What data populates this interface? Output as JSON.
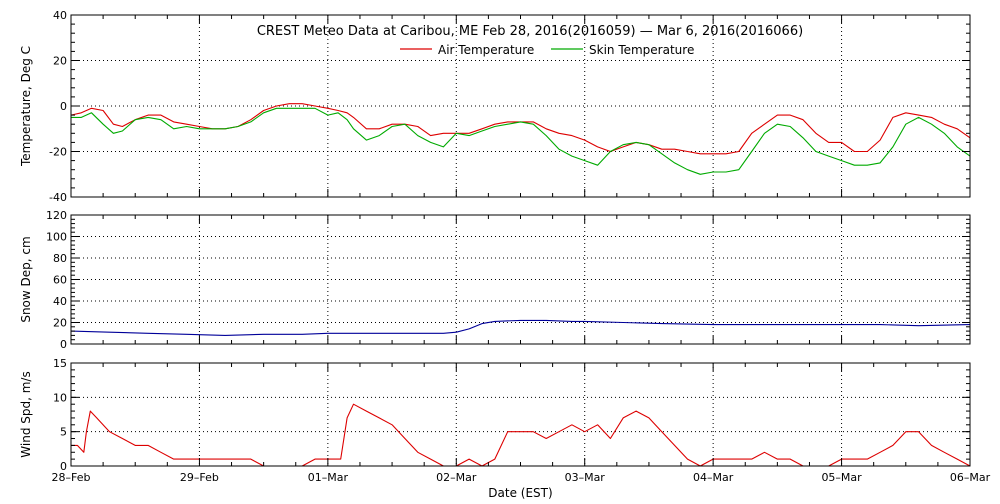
{
  "title": "CREST Meteo Data at Caribou, ME   Feb 28, 2016(2016059) — Mar  6, 2016(2016066)",
  "xlabel": "Date (EST)",
  "x_tick_labels": [
    "28–Feb",
    "29–Feb",
    "01–Mar",
    "02–Mar",
    "03–Mar",
    "04–Mar",
    "05–Mar",
    "06–Mar"
  ],
  "colors": {
    "air": "#dd0000",
    "skin": "#00aa00",
    "snow": "#000099",
    "wind": "#dd0000"
  },
  "chart_data": [
    {
      "type": "line",
      "id": "temperature",
      "ylabel": "Temperature, Deg C",
      "xlim": [
        0,
        7
      ],
      "ylim": [
        -40,
        40
      ],
      "y_ticks": [
        40,
        20,
        0,
        -20,
        -40
      ],
      "legend": [
        "Air Temperature",
        "Skin Temperature"
      ],
      "legend_position": "top-center",
      "grid": "vertical dotted at day boundaries",
      "series": [
        {
          "name": "Air Temperature",
          "x": [
            0,
            0.08,
            0.16,
            0.25,
            0.33,
            0.4,
            0.5,
            0.6,
            0.7,
            0.8,
            0.9,
            1.0,
            1.1,
            1.2,
            1.3,
            1.4,
            1.5,
            1.6,
            1.7,
            1.8,
            1.9,
            2.0,
            2.08,
            2.15,
            2.2,
            2.3,
            2.4,
            2.5,
            2.6,
            2.7,
            2.8,
            2.9,
            3.0,
            3.1,
            3.2,
            3.3,
            3.4,
            3.5,
            3.6,
            3.7,
            3.8,
            3.9,
            4.0,
            4.1,
            4.2,
            4.3,
            4.4,
            4.5,
            4.6,
            4.7,
            4.8,
            4.9,
            5.0,
            5.1,
            5.2,
            5.3,
            5.4,
            5.5,
            5.6,
            5.7,
            5.8,
            5.9,
            6.0,
            6.1,
            6.2,
            6.3,
            6.4,
            6.5,
            6.6,
            6.7,
            6.8,
            6.9,
            7.0
          ],
          "values": [
            -4,
            -3,
            -1,
            -2,
            -8,
            -9,
            -6,
            -4,
            -4,
            -7,
            -8,
            -9,
            -10,
            -10,
            -9,
            -6,
            -2,
            0,
            1,
            1,
            0,
            -1,
            -2,
            -3,
            -5,
            -10,
            -10,
            -8,
            -8,
            -9,
            -13,
            -12,
            -12,
            -12,
            -10,
            -8,
            -7,
            -7,
            -7,
            -10,
            -12,
            -13,
            -15,
            -18,
            -20,
            -18,
            -16,
            -17,
            -19,
            -19,
            -20,
            -21,
            -21,
            -21,
            -20,
            -12,
            -8,
            -4,
            -4,
            -6,
            -12,
            -16,
            -16,
            -20,
            -20,
            -15,
            -5,
            -3,
            -4,
            -5,
            -8,
            -10,
            -14
          ]
        },
        {
          "name": "Skin Temperature",
          "x": [
            0,
            0.08,
            0.16,
            0.25,
            0.33,
            0.4,
            0.5,
            0.6,
            0.7,
            0.8,
            0.9,
            1.0,
            1.1,
            1.2,
            1.3,
            1.4,
            1.5,
            1.6,
            1.7,
            1.8,
            1.9,
            2.0,
            2.08,
            2.15,
            2.2,
            2.3,
            2.4,
            2.5,
            2.6,
            2.7,
            2.8,
            2.9,
            3.0,
            3.1,
            3.2,
            3.3,
            3.4,
            3.5,
            3.6,
            3.7,
            3.8,
            3.9,
            4.0,
            4.1,
            4.2,
            4.3,
            4.4,
            4.5,
            4.6,
            4.7,
            4.8,
            4.9,
            5.0,
            5.1,
            5.2,
            5.3,
            5.4,
            5.5,
            5.6,
            5.7,
            5.8,
            5.9,
            6.0,
            6.1,
            6.2,
            6.3,
            6.4,
            6.5,
            6.6,
            6.7,
            6.8,
            6.9,
            7.0
          ],
          "values": [
            -5,
            -5,
            -3,
            -8,
            -12,
            -11,
            -6,
            -5,
            -6,
            -10,
            -9,
            -10,
            -10,
            -10,
            -9,
            -7,
            -3,
            -1,
            -1,
            -1,
            -1,
            -4,
            -3,
            -6,
            -10,
            -15,
            -13,
            -9,
            -8,
            -13,
            -16,
            -18,
            -12,
            -13,
            -11,
            -9,
            -8,
            -7,
            -8,
            -13,
            -19,
            -22,
            -24,
            -26,
            -20,
            -17,
            -16,
            -17,
            -21,
            -25,
            -28,
            -30,
            -29,
            -29,
            -28,
            -20,
            -12,
            -8,
            -9,
            -14,
            -20,
            -22,
            -24,
            -26,
            -26,
            -25,
            -18,
            -8,
            -5,
            -8,
            -12,
            -18,
            -22
          ]
        }
      ]
    },
    {
      "type": "line",
      "id": "snow_depth",
      "ylabel": "Snow Dep, cm",
      "xlim": [
        0,
        7
      ],
      "ylim": [
        0,
        120
      ],
      "y_ticks": [
        120,
        100,
        80,
        60,
        40,
        20,
        0
      ],
      "grid": "vertical dotted at day boundaries",
      "series": [
        {
          "x": [
            0,
            0.3,
            0.6,
            0.9,
            1.2,
            1.5,
            1.8,
            2.0,
            2.3,
            2.6,
            2.9,
            3.0,
            3.1,
            3.2,
            3.3,
            3.5,
            3.7,
            3.9,
            4.0,
            4.3,
            4.6,
            5.0,
            5.3,
            5.6,
            6.0,
            6.3,
            6.6,
            7.0
          ],
          "values": [
            12,
            11,
            10,
            9,
            8,
            9,
            9,
            10,
            10,
            10,
            10,
            11,
            14,
            19,
            21,
            22,
            22,
            21,
            21,
            20,
            19,
            18,
            18,
            18,
            18,
            18,
            17,
            18
          ]
        }
      ]
    },
    {
      "type": "line",
      "id": "wind_speed",
      "ylabel": "Wind Spd, m/s",
      "xlim": [
        0,
        7
      ],
      "ylim": [
        0,
        15
      ],
      "y_ticks": [
        15,
        10,
        5,
        0
      ],
      "grid": "vertical dotted at day boundaries",
      "series": [
        {
          "x": [
            0,
            0.05,
            0.1,
            0.12,
            0.15,
            0.2,
            0.3,
            0.4,
            0.5,
            0.6,
            0.7,
            0.8,
            0.9,
            1.0,
            1.1,
            1.2,
            1.3,
            1.4,
            1.5,
            1.6,
            1.7,
            1.8,
            1.9,
            2.0,
            2.05,
            2.1,
            2.15,
            2.2,
            2.3,
            2.4,
            2.5,
            2.6,
            2.7,
            2.8,
            2.9,
            3.0,
            3.1,
            3.2,
            3.3,
            3.4,
            3.5,
            3.6,
            3.7,
            3.8,
            3.9,
            4.0,
            4.1,
            4.2,
            4.3,
            4.4,
            4.5,
            4.6,
            4.7,
            4.8,
            4.9,
            5.0,
            5.1,
            5.2,
            5.3,
            5.4,
            5.5,
            5.6,
            5.7,
            5.8,
            5.9,
            6.0,
            6.1,
            6.2,
            6.3,
            6.4,
            6.5,
            6.6,
            6.7,
            6.8,
            6.9,
            7.0
          ],
          "values": [
            3,
            3,
            2,
            5,
            8,
            7,
            5,
            4,
            3,
            3,
            2,
            1,
            1,
            1,
            1,
            1,
            1,
            1,
            0,
            0,
            0,
            0,
            1,
            1,
            1,
            1,
            7,
            9,
            8,
            7,
            6,
            4,
            2,
            1,
            0,
            0,
            1,
            0,
            1,
            5,
            5,
            5,
            4,
            5,
            6,
            5,
            6,
            4,
            7,
            8,
            7,
            5,
            3,
            1,
            0,
            1,
            1,
            1,
            1,
            2,
            1,
            1,
            0,
            0,
            0,
            1,
            1,
            1,
            2,
            3,
            5,
            5,
            3,
            2,
            1,
            0
          ]
        }
      ]
    }
  ]
}
